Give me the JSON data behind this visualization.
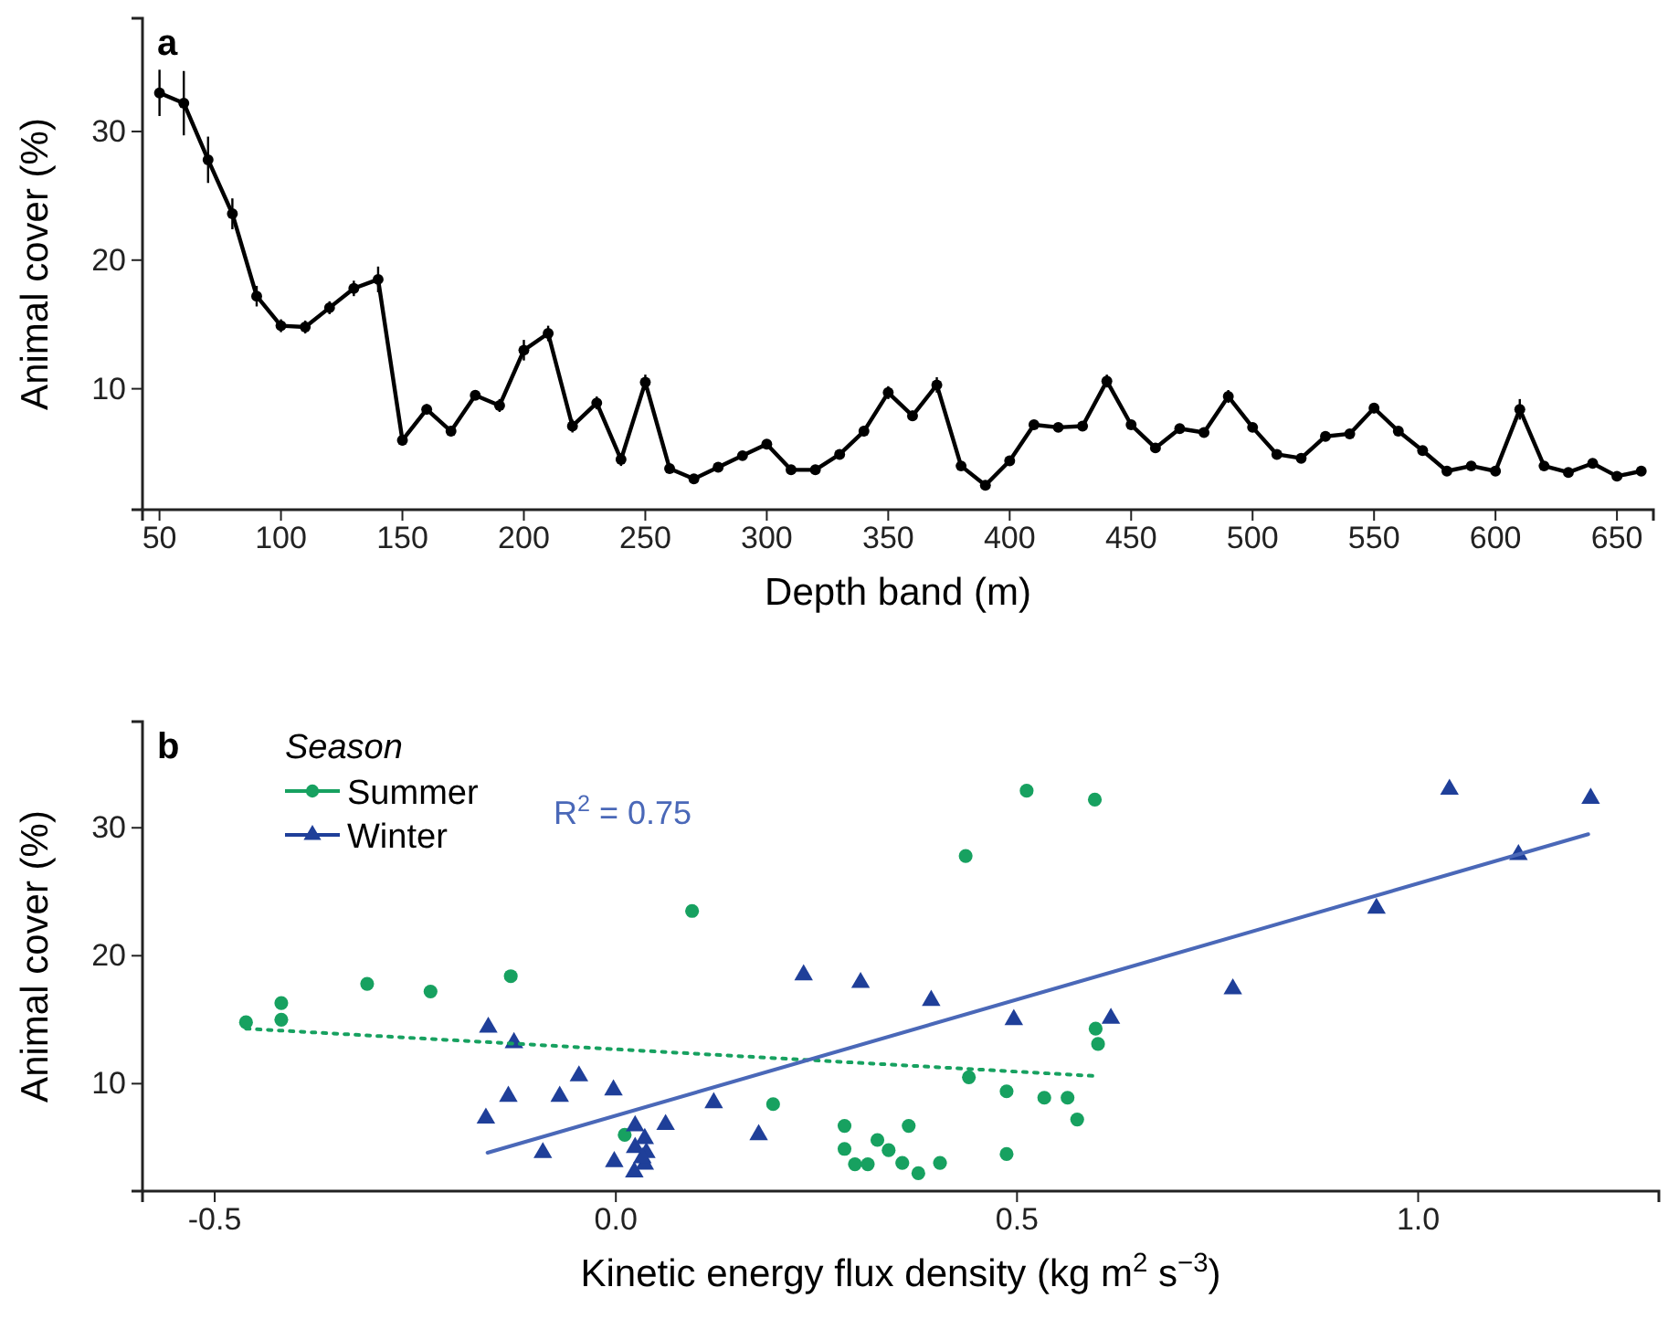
{
  "chart_data": [
    {
      "type": "line",
      "title": "a",
      "xlabel": "Depth band (m)",
      "ylabel": "Animal cover (%)",
      "marker": "circle",
      "line_style": "solid",
      "grid": false,
      "legend": false,
      "x": [
        50,
        60,
        70,
        80,
        90,
        100,
        110,
        120,
        130,
        140,
        150,
        160,
        170,
        180,
        190,
        200,
        210,
        220,
        230,
        240,
        250,
        260,
        270,
        280,
        290,
        300,
        310,
        320,
        330,
        340,
        350,
        360,
        370,
        380,
        390,
        400,
        410,
        420,
        430,
        440,
        450,
        460,
        470,
        480,
        490,
        500,
        510,
        520,
        530,
        540,
        550,
        560,
        570,
        580,
        590,
        600,
        610,
        620,
        630,
        640,
        650,
        660
      ],
      "values": [
        33.0,
        32.2,
        27.8,
        23.6,
        17.2,
        14.9,
        14.8,
        16.3,
        17.8,
        18.5,
        6.0,
        8.4,
        6.7,
        9.5,
        8.7,
        13.0,
        14.3,
        7.1,
        8.9,
        4.5,
        10.5,
        3.8,
        3.0,
        3.9,
        4.8,
        5.7,
        3.7,
        3.7,
        4.9,
        6.7,
        9.7,
        7.9,
        10.3,
        4.0,
        2.5,
        4.4,
        7.2,
        7.0,
        7.1,
        10.6,
        7.2,
        5.4,
        6.9,
        6.6,
        9.4,
        7.0,
        4.9,
        4.6,
        6.3,
        6.5,
        8.5,
        6.7,
        5.2,
        3.6,
        4.0,
        3.6,
        8.4,
        4.0,
        3.5,
        4.2,
        3.2,
        3.6
      ],
      "errors": [
        1.8,
        2.5,
        1.8,
        1.2,
        0.8,
        0.5,
        0.5,
        0.5,
        0.6,
        1.0,
        0.4,
        0.4,
        0.4,
        0.4,
        0.5,
        0.8,
        0.6,
        0.5,
        0.5,
        0.5,
        0.6,
        0.3,
        0.3,
        0.3,
        0.3,
        0.3,
        0.3,
        0.3,
        0.3,
        0.4,
        0.5,
        0.4,
        0.6,
        0.3,
        0.3,
        0.3,
        0.3,
        0.3,
        0.3,
        0.5,
        0.3,
        0.3,
        0.3,
        0.3,
        0.5,
        0.3,
        0.3,
        0.3,
        0.3,
        0.3,
        0.4,
        0.3,
        0.3,
        0.3,
        0.3,
        0.3,
        0.8,
        0.3,
        0.3,
        0.3,
        0.3,
        0.3
      ],
      "color": "#000000",
      "xlim": [
        43,
        665
      ],
      "xticks": [
        50,
        100,
        150,
        200,
        250,
        300,
        350,
        400,
        450,
        500,
        550,
        600,
        650
      ],
      "ylim": [
        0.6,
        38.8
      ],
      "yticks": [
        10,
        20,
        30
      ]
    },
    {
      "type": "scatter",
      "title": "b",
      "xlabel": "Kinetic energy flux density (kg m$^{2}$ s$^{−3}$)",
      "ylabel": "Animal cover (%)",
      "legend_title": "Season",
      "legend": "top left",
      "grid": false,
      "annotations": [
        "R$^{2}$ = 0.75"
      ],
      "series": [
        {
          "name": "Summer",
          "color": "#17a160",
          "marker": "circle",
          "x": [
            -0.461,
            -0.417,
            -0.417,
            -0.31,
            -0.231,
            -0.131,
            0.095,
            0.011,
            0.196,
            0.285,
            0.285,
            0.298,
            0.314,
            0.326,
            0.34,
            0.357,
            0.365,
            0.377,
            0.404,
            0.44,
            0.487,
            0.487,
            0.534,
            0.563,
            0.575,
            0.436,
            0.512,
            0.597,
            0.598,
            0.601
          ],
          "values": [
            14.8,
            16.3,
            15.0,
            17.8,
            17.2,
            18.4,
            23.5,
            6.0,
            8.4,
            6.7,
            4.9,
            3.7,
            3.7,
            5.6,
            4.8,
            3.8,
            6.7,
            3.0,
            3.8,
            10.5,
            9.4,
            4.5,
            8.9,
            8.9,
            7.2,
            27.8,
            32.9,
            32.2,
            14.3,
            13.1
          ]
        },
        {
          "name": "Winter",
          "color": "#1f3f99",
          "marker": "triangle",
          "x": [
            -0.159,
            -0.127,
            -0.162,
            -0.134,
            -0.091,
            -0.07,
            -0.046,
            -0.003,
            -0.002,
            0.024,
            0.024,
            0.036,
            0.038,
            0.036,
            0.023,
            0.033,
            0.062,
            0.122,
            0.178,
            0.234,
            0.305,
            0.393,
            0.496,
            0.617,
            0.769,
            0.948,
            1.039,
            1.125,
            1.215
          ],
          "values": [
            14.4,
            13.2,
            7.3,
            9.0,
            4.6,
            9.0,
            10.6,
            9.5,
            3.9,
            6.7,
            5.0,
            5.7,
            4.6,
            3.7,
            3.1,
            4.2,
            6.8,
            8.5,
            6.0,
            18.5,
            17.9,
            16.5,
            15.0,
            15.1,
            17.4,
            23.7,
            33.0,
            27.9,
            32.3
          ]
        },
        {
          "type": "line",
          "color": "#17a160",
          "line_style": "dotted",
          "marker": "none",
          "x": [
            -0.461,
            0.597
          ],
          "values": [
            14.3,
            10.6
          ]
        },
        {
          "type": "line",
          "color": "#4a68b8",
          "line_style": "solid",
          "marker": "none",
          "x": [
            -0.16,
            1.212
          ],
          "values": [
            4.6,
            29.5
          ]
        }
      ],
      "xlim": [
        -0.59,
        1.3
      ],
      "xticks": [
        {
          "value": -0.5,
          "label": "-0.5"
        },
        {
          "value": 0,
          "label": "0.0"
        },
        0.5,
        {
          "value": 1,
          "label": "1.0"
        }
      ],
      "ylim": [
        1.6,
        38.3
      ],
      "yticks": [
        10,
        20,
        30
      ]
    }
  ]
}
